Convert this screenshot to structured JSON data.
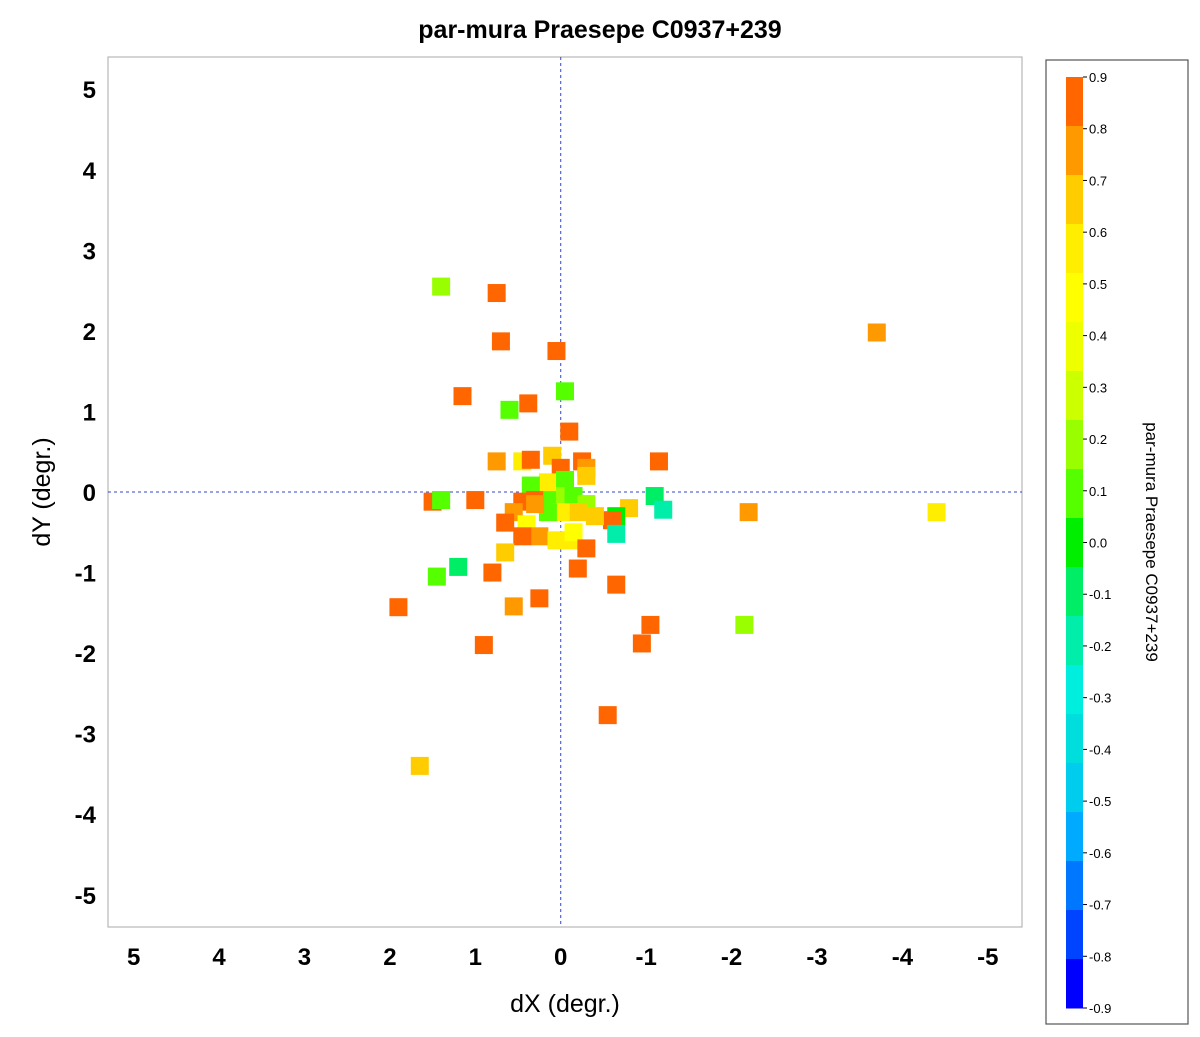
{
  "chart_data": {
    "type": "scatter",
    "title": "par-mura Praesepe  C0937+239",
    "xlabel": "dX (degr.)",
    "ylabel": "dY (degr.)",
    "xlim": [
      5.3,
      -5.4
    ],
    "ylim": [
      -5.4,
      5.4
    ],
    "x_ticks": [
      5,
      4,
      3,
      2,
      1,
      0,
      -1,
      -2,
      -3,
      -4,
      -5
    ],
    "y_ticks": [
      5,
      4,
      3,
      2,
      1,
      0,
      -1,
      -2,
      -3,
      -4,
      -5
    ],
    "reference_lines": {
      "x": 0,
      "y": 0
    },
    "colorbar": {
      "label": "par-mura Praesepe  C0937+239",
      "range": [
        -0.9,
        0.9
      ],
      "ticks": [
        "0.9",
        "0.8",
        "0.7",
        "0.6",
        "0.5",
        "0.4",
        "0.3",
        "0.2",
        "0.1",
        "0.0",
        "-0.1",
        "-0.2",
        "-0.3",
        "-0.4",
        "-0.5",
        "-0.6",
        "-0.7",
        "-0.8",
        "-0.9"
      ],
      "colors": [
        "#ff6600",
        "#ff9900",
        "#ffcc00",
        "#ffee00",
        "#ffff00",
        "#eeff00",
        "#ccff00",
        "#99ff00",
        "#55ff00",
        "#00ee00",
        "#00ee66",
        "#00eeaa",
        "#00eedd",
        "#00dddd",
        "#00ccee",
        "#00aaff",
        "#0077ff",
        "#0044ff",
        "#0000ff"
      ]
    },
    "points": [
      {
        "x": 1.4,
        "y": 2.55,
        "v": 0.15
      },
      {
        "x": 0.75,
        "y": 2.47,
        "v": 0.95
      },
      {
        "x": 0.7,
        "y": 1.87,
        "v": 0.95
      },
      {
        "x": 0.05,
        "y": 1.75,
        "v": 0.95
      },
      {
        "x": 1.15,
        "y": 1.19,
        "v": 0.85
      },
      {
        "x": -0.05,
        "y": 1.25,
        "v": 0.05
      },
      {
        "x": 0.6,
        "y": 1.02,
        "v": 0.05
      },
      {
        "x": 0.38,
        "y": 1.1,
        "v": 0.95
      },
      {
        "x": -0.1,
        "y": 0.75,
        "v": 0.85
      },
      {
        "x": 0.75,
        "y": 0.38,
        "v": 0.75
      },
      {
        "x": 0.45,
        "y": 0.38,
        "v": 0.6
      },
      {
        "x": 0.35,
        "y": 0.4,
        "v": 0.95
      },
      {
        "x": 0.1,
        "y": 0.45,
        "v": 0.65
      },
      {
        "x": 0.0,
        "y": 0.3,
        "v": 0.95
      },
      {
        "x": -0.25,
        "y": 0.38,
        "v": 0.95
      },
      {
        "x": -0.3,
        "y": 0.3,
        "v": 0.8
      },
      {
        "x": -1.15,
        "y": 0.38,
        "v": 0.95
      },
      {
        "x": -0.3,
        "y": 0.2,
        "v": 0.7
      },
      {
        "x": 0.15,
        "y": 0.12,
        "v": 0.6
      },
      {
        "x": -0.05,
        "y": 0.15,
        "v": 0.05
      },
      {
        "x": 0.35,
        "y": 0.08,
        "v": 0.05
      },
      {
        "x": 1.5,
        "y": -0.12,
        "v": 0.95
      },
      {
        "x": 1.4,
        "y": -0.1,
        "v": 0.1
      },
      {
        "x": 1.0,
        "y": -0.1,
        "v": 0.95
      },
      {
        "x": 0.45,
        "y": -0.12,
        "v": 0.95
      },
      {
        "x": 0.3,
        "y": -0.1,
        "v": 0.85
      },
      {
        "x": 0.1,
        "y": -0.1,
        "v": 0.05
      },
      {
        "x": -0.05,
        "y": -0.05,
        "v": 0.15
      },
      {
        "x": -0.15,
        "y": -0.05,
        "v": 0.05
      },
      {
        "x": -0.3,
        "y": -0.15,
        "v": 0.2
      },
      {
        "x": -1.1,
        "y": -0.05,
        "v": -0.1
      },
      {
        "x": -1.2,
        "y": -0.22,
        "v": -0.2
      },
      {
        "x": -0.8,
        "y": -0.2,
        "v": 0.65
      },
      {
        "x": -0.65,
        "y": -0.3,
        "v": 0.0
      },
      {
        "x": -0.6,
        "y": -0.35,
        "v": 0.95
      },
      {
        "x": -0.4,
        "y": -0.3,
        "v": 0.65
      },
      {
        "x": -0.2,
        "y": -0.25,
        "v": 0.65
      },
      {
        "x": 0.0,
        "y": -0.25,
        "v": 0.6
      },
      {
        "x": 0.15,
        "y": -0.25,
        "v": 0.1
      },
      {
        "x": 0.3,
        "y": -0.15,
        "v": 0.8
      },
      {
        "x": 0.55,
        "y": -0.25,
        "v": 0.8
      },
      {
        "x": 0.65,
        "y": -0.38,
        "v": 0.95
      },
      {
        "x": 0.4,
        "y": -0.4,
        "v": 0.45
      },
      {
        "x": 0.25,
        "y": -0.55,
        "v": 0.75
      },
      {
        "x": 0.45,
        "y": -0.55,
        "v": 0.85
      },
      {
        "x": 0.05,
        "y": -0.6,
        "v": 0.55
      },
      {
        "x": -0.1,
        "y": -0.6,
        "v": 0.55
      },
      {
        "x": -0.15,
        "y": -0.5,
        "v": 0.45
      },
      {
        "x": -0.3,
        "y": -0.7,
        "v": 0.95
      },
      {
        "x": -0.65,
        "y": -0.52,
        "v": -0.15
      },
      {
        "x": -2.2,
        "y": -0.25,
        "v": 0.75
      },
      {
        "x": -4.4,
        "y": -0.25,
        "v": 0.6
      },
      {
        "x": -3.7,
        "y": 1.98,
        "v": 0.8
      },
      {
        "x": 0.65,
        "y": -0.75,
        "v": 0.65
      },
      {
        "x": 1.2,
        "y": -0.93,
        "v": -0.1
      },
      {
        "x": 1.45,
        "y": -1.05,
        "v": 0.1
      },
      {
        "x": 0.8,
        "y": -1.0,
        "v": 0.95
      },
      {
        "x": -0.2,
        "y": -0.95,
        "v": 0.95
      },
      {
        "x": -0.65,
        "y": -1.15,
        "v": 0.95
      },
      {
        "x": 0.55,
        "y": -1.42,
        "v": 0.8
      },
      {
        "x": 0.25,
        "y": -1.32,
        "v": 0.95
      },
      {
        "x": 1.9,
        "y": -1.43,
        "v": 0.95
      },
      {
        "x": 0.9,
        "y": -1.9,
        "v": 0.95
      },
      {
        "x": -1.05,
        "y": -1.65,
        "v": 0.95
      },
      {
        "x": -0.95,
        "y": -1.88,
        "v": 0.95
      },
      {
        "x": -2.15,
        "y": -1.65,
        "v": 0.2
      },
      {
        "x": -0.55,
        "y": -2.77,
        "v": 0.85
      },
      {
        "x": 1.65,
        "y": -3.4,
        "v": 0.7
      }
    ]
  }
}
